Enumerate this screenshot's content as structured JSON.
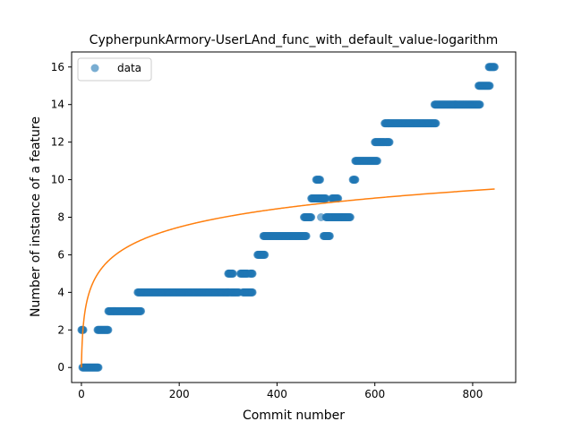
{
  "chart_data": {
    "type": "scatter",
    "title": "CypherpunkArmory-UserLAnd_func_with_default_value-logarithm",
    "xlabel": "Commit number",
    "ylabel": "Number of instance of a feature",
    "xlim": [
      -20,
      888
    ],
    "ylim": [
      -0.8,
      16.8
    ],
    "xticks": [
      0,
      200,
      400,
      600,
      800
    ],
    "yticks": [
      0,
      2,
      4,
      6,
      8,
      10,
      12,
      14,
      16
    ],
    "legend": {
      "placement": "top-left",
      "entries": [
        "data"
      ]
    },
    "colors": {
      "scatter": "#1f77b4",
      "fit": "#ff7f0e"
    },
    "series": [
      {
        "name": "data",
        "kind": "scatter",
        "runs": [
          {
            "x0": 0,
            "x1": 4,
            "y": 2
          },
          {
            "x0": 2,
            "x1": 35,
            "y": 0
          },
          {
            "x0": 33,
            "x1": 55,
            "y": 2
          },
          {
            "x0": 55,
            "x1": 122,
            "y": 3
          },
          {
            "x0": 115,
            "x1": 303,
            "y": 4
          },
          {
            "x0": 300,
            "x1": 310,
            "y": 5
          },
          {
            "x0": 305,
            "x1": 322,
            "y": 4
          },
          {
            "x0": 325,
            "x1": 340,
            "y": 5
          },
          {
            "x0": 330,
            "x1": 350,
            "y": 4
          },
          {
            "x0": 345,
            "x1": 350,
            "y": 5
          },
          {
            "x0": 360,
            "x1": 375,
            "y": 6
          },
          {
            "x0": 372,
            "x1": 460,
            "y": 7
          },
          {
            "x0": 455,
            "x1": 470,
            "y": 8
          },
          {
            "x0": 470,
            "x1": 500,
            "y": 9
          },
          {
            "x0": 480,
            "x1": 488,
            "y": 10
          },
          {
            "x0": 495,
            "x1": 508,
            "y": 7
          },
          {
            "x0": 500,
            "x1": 550,
            "y": 8
          },
          {
            "x0": 512,
            "x1": 525,
            "y": 9
          },
          {
            "x0": 555,
            "x1": 560,
            "y": 10
          },
          {
            "x0": 560,
            "x1": 605,
            "y": 11
          },
          {
            "x0": 600,
            "x1": 620,
            "y": 12
          },
          {
            "x0": 620,
            "x1": 628,
            "y": 13
          },
          {
            "x0": 622,
            "x1": 630,
            "y": 12
          },
          {
            "x0": 628,
            "x1": 725,
            "y": 13
          },
          {
            "x0": 722,
            "x1": 815,
            "y": 14
          },
          {
            "x0": 812,
            "x1": 835,
            "y": 15
          },
          {
            "x0": 833,
            "x1": 845,
            "y": 16
          }
        ],
        "points": [
          {
            "x": 490,
            "y": 8
          },
          {
            "x": 505,
            "y": 8
          }
        ]
      },
      {
        "kind": "line",
        "x_start": 0,
        "x_end": 845,
        "y_at_start": 0,
        "y_at_end": 9.5,
        "log_offset": 1
      }
    ]
  }
}
